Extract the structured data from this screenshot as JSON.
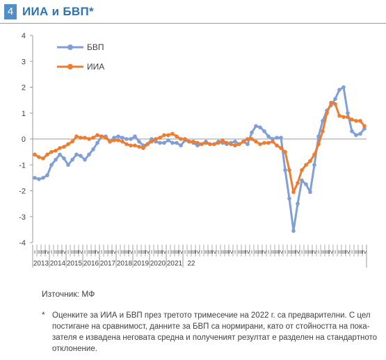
{
  "header": {
    "number": "4",
    "title": "ИИА и БВП*"
  },
  "chart_data": {
    "type": "line",
    "title": "ИИА и БВП*",
    "ylim": [
      -4,
      4
    ],
    "yticks": [
      "4",
      "3",
      "2",
      "1",
      "0",
      "-1",
      "-2",
      "-3",
      "-4"
    ],
    "grid": false,
    "legend_position": "top-left",
    "quarter_labels": [
      "I",
      "II",
      "III",
      "IV"
    ],
    "years": [
      "2013",
      "2014",
      "2015",
      "2016",
      "2017",
      "2018",
      "2019",
      "2020",
      "2021",
      "22"
    ],
    "series": [
      {
        "name": "БВП",
        "color": "#7f9fd6",
        "marker": "circle",
        "values": [
          -1.5,
          -1.55,
          -1.5,
          -1.4,
          -1.0,
          -0.8,
          -0.6,
          -0.75,
          -1.0,
          -0.8,
          -0.6,
          -0.65,
          -0.8,
          -0.6,
          -0.4,
          -0.15,
          0.1,
          0.1,
          -0.1,
          0.05,
          0.1,
          0.05,
          0.0,
          0.0,
          0.1,
          -0.1,
          -0.25,
          -0.2,
          0.0,
          -0.1,
          -0.15,
          -0.15,
          -0.05,
          -0.15,
          -0.15,
          -0.25,
          -0.05,
          -0.1,
          -0.15,
          -0.25,
          -0.2,
          -0.1,
          -0.2,
          -0.2,
          -0.1,
          -0.15,
          -0.2,
          -0.15,
          -0.1,
          -0.2,
          -0.1,
          -0.2,
          0.25,
          0.5,
          0.45,
          0.3,
          0.1,
          0.0,
          0.05,
          0.05,
          -1.2,
          -2.3,
          -3.55,
          -2.5,
          -1.6,
          -1.75,
          -2.05,
          -1.0,
          0.1,
          0.7,
          1.1,
          1.3,
          1.55,
          1.9,
          2.0,
          1.0,
          0.3,
          0.15,
          0.2,
          0.4
        ]
      },
      {
        "name": "ИИА",
        "color": "#ed7d31",
        "marker": "circle",
        "values": [
          -0.6,
          -0.7,
          -0.75,
          -0.6,
          -0.5,
          -0.45,
          -0.35,
          -0.3,
          -0.2,
          -0.1,
          0.1,
          0.05,
          0.05,
          0.0,
          0.05,
          0.15,
          0.1,
          0.05,
          -0.1,
          -0.05,
          -0.05,
          -0.1,
          -0.2,
          -0.25,
          -0.25,
          -0.3,
          -0.35,
          -0.2,
          -0.1,
          0.0,
          0.05,
          0.15,
          0.15,
          0.2,
          0.1,
          0.0,
          0.0,
          -0.1,
          -0.1,
          -0.15,
          -0.2,
          -0.15,
          -0.2,
          -0.2,
          -0.15,
          -0.05,
          -0.15,
          -0.2,
          -0.25,
          -0.2,
          -0.1,
          0.0,
          0.0,
          -0.1,
          -0.2,
          -0.15,
          -0.15,
          -0.1,
          -0.25,
          -0.35,
          -0.5,
          -1.2,
          -2.05,
          -1.7,
          -1.2,
          -1.0,
          -0.85,
          -0.6,
          -0.2,
          0.3,
          1.0,
          1.4,
          1.35,
          0.9,
          0.85,
          0.85,
          0.75,
          0.7,
          0.7,
          0.5
        ]
      }
    ]
  },
  "source": "Източник: МФ",
  "note": {
    "mark": "*",
    "text": "Оценките за ИИА и БВП през третото тримесечие на 2022 г. са предварителни. С цел\nпостигане на сравнимост, данните за БВП са нормирани, като от стойността на пока-\nзателя е извадена неговата средна и полученият резултат е разделен на стандартното\nотклонение."
  }
}
